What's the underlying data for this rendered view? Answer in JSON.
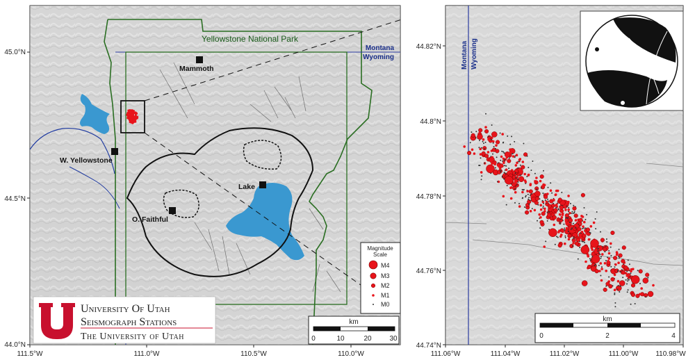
{
  "left_map": {
    "park_label": "Yellowstone National Park",
    "state_labels": [
      "Montana",
      "Wyoming"
    ],
    "places": [
      {
        "name": "Mammoth",
        "id": "mammoth"
      },
      {
        "name": "W. Yellowstone",
        "id": "west-yellowstone"
      },
      {
        "name": "Lake",
        "id": "lake"
      },
      {
        "name": "O. Faithful",
        "id": "old-faithful"
      }
    ],
    "lat_ticks": [
      "45.0°N",
      "44.5°N",
      "44.0°N"
    ],
    "lon_ticks": [
      "111.5°W",
      "111.0°W",
      "110.5°W",
      "110.0°W"
    ],
    "scale_bar": {
      "unit": "km",
      "ticks": [
        "0",
        "10",
        "20",
        "30"
      ]
    },
    "magnitude_legend": {
      "title_line1": "Magnitude",
      "title_line2": "Scale",
      "entries": [
        "M4",
        "M3",
        "M2",
        "M1",
        "M0"
      ]
    },
    "logo": {
      "line1": "University Of Utah",
      "line2": "Seismograph Stations",
      "line3": "The University of Utah",
      "emblem_letter": "U"
    }
  },
  "right_map": {
    "state_labels": [
      "Montana",
      "Wyoming"
    ],
    "lat_ticks": [
      "44.82°N",
      "44.8°N",
      "44.78°N",
      "44.76°N",
      "44.74°N"
    ],
    "lon_ticks": [
      "111.06°W",
      "111.04°W",
      "111.02°W",
      "111.00°W",
      "110.98°W"
    ],
    "scale_bar": {
      "unit": "km",
      "ticks": [
        "0",
        "2",
        "4"
      ]
    }
  },
  "colors": {
    "quake": "#e8141b",
    "water": "#3a98d0",
    "park_boundary": "#2a6e22",
    "state_line": "#2a3aa0",
    "caldera": "#111111",
    "utah_red": "#c8102e"
  }
}
